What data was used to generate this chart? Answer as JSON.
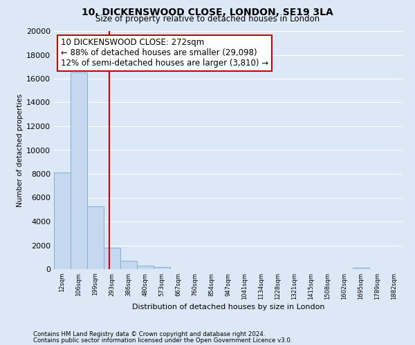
{
  "title": "10, DICKENSWOOD CLOSE, LONDON, SE19 3LA",
  "subtitle": "Size of property relative to detached houses in London",
  "xlabel": "Distribution of detached houses by size in London",
  "ylabel": "Number of detached properties",
  "bar_color": "#c5d8f0",
  "bar_edge_color": "#7aafd4",
  "background_color": "#dce8f5",
  "grid_color": "#ffffff",
  "categories": [
    "12sqm",
    "106sqm",
    "199sqm",
    "293sqm",
    "386sqm",
    "480sqm",
    "573sqm",
    "667sqm",
    "760sqm",
    "854sqm",
    "947sqm",
    "1041sqm",
    "1134sqm",
    "1228sqm",
    "1321sqm",
    "1415sqm",
    "1508sqm",
    "1602sqm",
    "1695sqm",
    "1789sqm",
    "1882sqm"
  ],
  "values": [
    8100,
    16500,
    5300,
    1800,
    700,
    300,
    150,
    0,
    0,
    0,
    0,
    0,
    0,
    0,
    0,
    0,
    0,
    0,
    100,
    0,
    0
  ],
  "ylim": [
    0,
    20000
  ],
  "yticks": [
    0,
    2000,
    4000,
    6000,
    8000,
    10000,
    12000,
    14000,
    16000,
    18000,
    20000
  ],
  "vline_x": 2.85,
  "vline_color": "#cc0000",
  "annotation_line1": "10 DICKENSWOOD CLOSE: 272sqm",
  "annotation_line2": "← 88% of detached houses are smaller (29,098)",
  "annotation_line3": "12% of semi-detached houses are larger (3,810) →",
  "annotation_box_color": "#ffffff",
  "annotation_box_edge": "#cc0000",
  "footer_line1": "Contains HM Land Registry data © Crown copyright and database right 2024.",
  "footer_line2": "Contains public sector information licensed under the Open Government Licence v3.0."
}
